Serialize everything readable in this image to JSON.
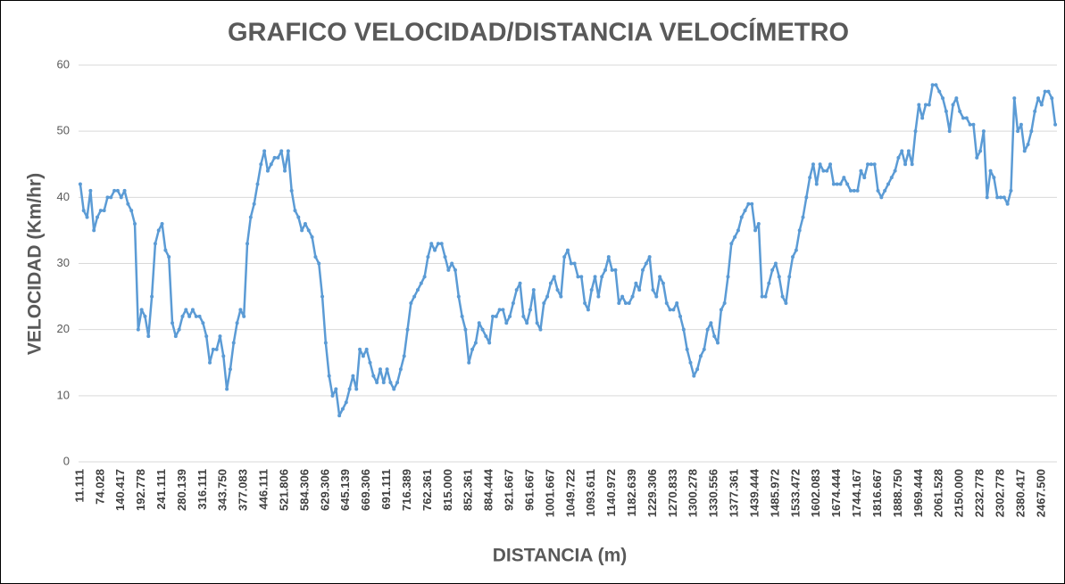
{
  "chart_data": {
    "type": "line",
    "title": "GRAFICO VELOCIDAD/DISTANCIA   VELOCÍMETRO",
    "x_label": "DISTANCIA  (m)",
    "y_label": "VELOCIDAD  (Km/hr)",
    "ylim": [
      0,
      60
    ],
    "yticks": [
      0,
      10,
      20,
      30,
      40,
      50,
      60
    ],
    "grid": true,
    "categories": [
      "11.111",
      null,
      null,
      null,
      null,
      null,
      "74.028",
      null,
      null,
      null,
      null,
      null,
      "140.417",
      null,
      null,
      null,
      null,
      null,
      "192.778",
      null,
      null,
      null,
      null,
      null,
      "241.111",
      null,
      null,
      null,
      null,
      null,
      "280.139",
      null,
      null,
      null,
      null,
      null,
      "316.111",
      null,
      null,
      null,
      null,
      null,
      "343.750",
      null,
      null,
      null,
      null,
      null,
      "377.083",
      null,
      null,
      null,
      null,
      null,
      "446.111",
      null,
      null,
      null,
      null,
      null,
      "521.806",
      null,
      null,
      null,
      null,
      null,
      "584.306",
      null,
      null,
      null,
      null,
      null,
      "629.306",
      null,
      null,
      null,
      null,
      null,
      "645.139",
      null,
      null,
      null,
      null,
      null,
      "669.306",
      null,
      null,
      null,
      null,
      null,
      "691.111",
      null,
      null,
      null,
      null,
      null,
      "716.389",
      null,
      null,
      null,
      null,
      null,
      "762.361",
      null,
      null,
      null,
      null,
      null,
      "815.000",
      null,
      null,
      null,
      null,
      null,
      "852.361",
      null,
      null,
      null,
      null,
      null,
      "884.444",
      null,
      null,
      null,
      null,
      null,
      "921.667",
      null,
      null,
      null,
      null,
      null,
      "961.667",
      null,
      null,
      null,
      null,
      null,
      "1001.667",
      null,
      null,
      null,
      null,
      null,
      "1049.722",
      null,
      null,
      null,
      null,
      null,
      "1093.611",
      null,
      null,
      null,
      null,
      null,
      "1140.972",
      null,
      null,
      null,
      null,
      null,
      "1182.639",
      null,
      null,
      null,
      null,
      null,
      "1229.306",
      null,
      null,
      null,
      null,
      null,
      "1270.833",
      null,
      null,
      null,
      null,
      null,
      "1300.278",
      null,
      null,
      null,
      null,
      null,
      "1330.556",
      null,
      null,
      null,
      null,
      null,
      "1377.361",
      null,
      null,
      null,
      null,
      null,
      "1439.444",
      null,
      null,
      null,
      null,
      null,
      "1485.972",
      null,
      null,
      null,
      null,
      null,
      "1533.472",
      null,
      null,
      null,
      null,
      null,
      "1602.083",
      null,
      null,
      null,
      null,
      null,
      "1674.444",
      null,
      null,
      null,
      null,
      null,
      "1744.167",
      null,
      null,
      null,
      null,
      null,
      "1816.667",
      null,
      null,
      null,
      null,
      null,
      "1888.750",
      null,
      null,
      null,
      null,
      null,
      "1969.444",
      null,
      null,
      null,
      null,
      null,
      "2061.528",
      null,
      null,
      null,
      null,
      null,
      "2150.000",
      null,
      null,
      null,
      null,
      null,
      "2232.778",
      null,
      null,
      null,
      null,
      null,
      "2302.778",
      null,
      null,
      null,
      null,
      null,
      "2380.417",
      null,
      null,
      null,
      null,
      null,
      "2467.500",
      null,
      null,
      null,
      null
    ],
    "series": [
      {
        "name": "VELOCIDAD",
        "color": "#5b9bd5",
        "values": [
          42,
          38,
          37,
          41,
          35,
          37,
          38,
          38,
          40,
          40,
          41,
          41,
          40,
          41,
          39,
          38,
          36,
          20,
          23,
          22,
          19,
          25,
          33,
          35,
          36,
          32,
          31,
          21,
          19,
          20,
          22,
          23,
          22,
          23,
          22,
          22,
          21,
          19,
          15,
          17,
          17,
          19,
          16,
          11,
          14,
          18,
          21,
          23,
          22,
          33,
          37,
          39,
          42,
          45,
          47,
          44,
          45,
          46,
          46,
          47,
          44,
          47,
          41,
          38,
          37,
          35,
          36,
          35,
          34,
          31,
          30,
          25,
          18,
          13,
          10,
          11,
          7,
          8,
          9,
          11,
          13,
          11,
          17,
          16,
          17,
          15,
          13,
          12,
          14,
          12,
          14,
          12,
          11,
          12,
          14,
          16,
          20,
          24,
          25,
          26,
          27,
          28,
          31,
          33,
          32,
          33,
          33,
          31,
          29,
          30,
          29,
          25,
          22,
          20,
          15,
          17,
          18,
          21,
          20,
          19,
          18,
          22,
          22,
          23,
          23,
          21,
          22,
          24,
          26,
          27,
          22,
          21,
          23,
          26,
          21,
          20,
          24,
          25,
          27,
          28,
          26,
          25,
          31,
          32,
          30,
          30,
          28,
          28,
          24,
          23,
          26,
          28,
          25,
          28,
          29,
          31,
          29,
          29,
          24,
          25,
          24,
          24,
          25,
          27,
          26,
          29,
          30,
          31,
          26,
          25,
          28,
          27,
          24,
          23,
          23,
          24,
          22,
          20,
          17,
          15,
          13,
          14,
          16,
          17,
          20,
          21,
          19,
          18,
          23,
          24,
          28,
          33,
          34,
          35,
          37,
          38,
          39,
          39,
          35,
          36,
          25,
          25,
          27,
          29,
          30,
          28,
          25,
          24,
          28,
          31,
          32,
          35,
          37,
          40,
          43,
          45,
          42,
          45,
          44,
          44,
          45,
          42,
          42,
          42,
          43,
          42,
          41,
          41,
          41,
          44,
          43,
          45,
          45,
          45,
          41,
          40,
          41,
          42,
          43,
          44,
          46,
          47,
          45,
          47,
          45,
          50,
          54,
          52,
          54,
          54,
          57,
          57,
          56,
          55,
          53,
          50,
          54,
          55,
          53,
          52,
          52,
          51,
          51,
          46,
          47,
          50,
          40,
          44,
          43,
          40,
          40,
          40,
          39,
          41,
          55,
          50,
          51,
          47,
          48,
          50,
          53,
          55,
          54,
          56,
          56,
          55,
          51
        ]
      }
    ]
  }
}
